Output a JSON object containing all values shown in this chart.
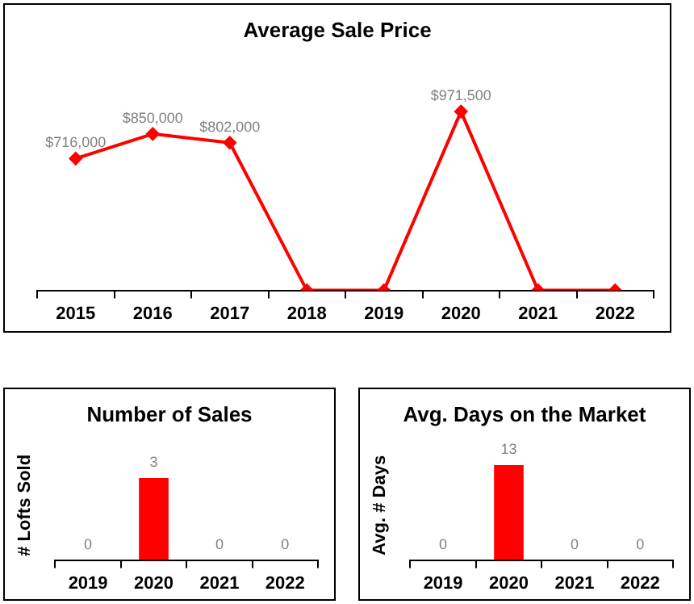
{
  "chart_data": [
    {
      "type": "line",
      "title": "Average Sale Price",
      "categories": [
        "2015",
        "2016",
        "2017",
        "2018",
        "2019",
        "2020",
        "2021",
        "2022"
      ],
      "values": [
        716000,
        850000,
        802000,
        0,
        0,
        971500,
        0,
        0
      ],
      "value_labels": [
        "$716,000",
        "$850,000",
        "$802,000",
        null,
        null,
        "$971,500",
        null,
        null
      ],
      "color": "#ff0000",
      "marker": "diamond",
      "tick_labels": "x",
      "grid": false,
      "legend": false
    },
    {
      "type": "bar",
      "title": "Number of Sales",
      "ylabel": "# Lofts Sold",
      "categories": [
        "2019",
        "2020",
        "2021",
        "2022"
      ],
      "values": [
        0,
        3,
        0,
        0
      ],
      "color": "#ff0000",
      "data_labels": true,
      "tick_labels": "x",
      "grid": false,
      "legend": false
    },
    {
      "type": "bar",
      "title": "Avg. Days on the Market",
      "ylabel": "Avg. # Days",
      "categories": [
        "2019",
        "2020",
        "2021",
        "2022"
      ],
      "values": [
        0,
        13,
        0,
        0
      ],
      "color": "#ff0000",
      "data_labels": true,
      "tick_labels": "x",
      "grid": false,
      "legend": false
    }
  ]
}
